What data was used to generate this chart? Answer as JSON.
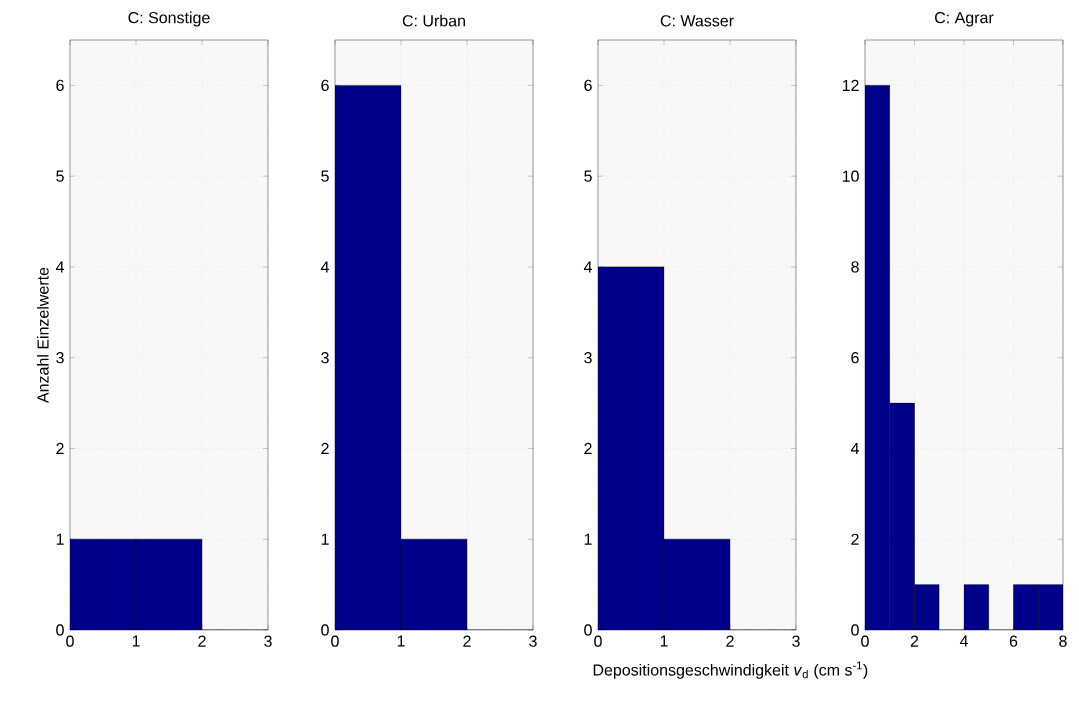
{
  "chart_data": [
    {
      "type": "histogram",
      "title": "C: Sonstige",
      "ylabel": "Anzahl Einzelwerte",
      "bins": [
        0,
        1,
        2,
        3
      ],
      "values": [
        1,
        1,
        0
      ],
      "color": "#00008b",
      "xlim": [
        0,
        3
      ],
      "ylim": [
        0,
        6.5
      ],
      "xticks": [
        0,
        1,
        2,
        3
      ],
      "yticks": [
        0,
        1,
        2,
        3,
        4,
        5,
        6
      ],
      "grid": true
    },
    {
      "type": "histogram",
      "title": "C: Urban",
      "bins": [
        0,
        1,
        2,
        3
      ],
      "values": [
        6,
        1,
        0
      ],
      "color": "#00008b",
      "xlim": [
        0,
        3
      ],
      "ylim": [
        0,
        6.5
      ],
      "xticks": [
        0,
        1,
        2,
        3
      ],
      "yticks": [
        0,
        1,
        2,
        3,
        4,
        5,
        6
      ],
      "grid": true
    },
    {
      "type": "histogram",
      "title": "C: Wasser",
      "bins": [
        0,
        1,
        2,
        3
      ],
      "values": [
        4,
        1,
        0
      ],
      "color": "#00008b",
      "xlim": [
        0,
        3
      ],
      "ylim": [
        0,
        6.5
      ],
      "xticks": [
        0,
        1,
        2,
        3
      ],
      "yticks": [
        0,
        1,
        2,
        3,
        4,
        5,
        6
      ],
      "grid": true
    },
    {
      "type": "histogram",
      "title": "C: Agrar",
      "xlabel": "Depositionsgeschwindigkeit *v*$_{d}$  (cm s$^{-1}$)",
      "bins": [
        0,
        1,
        2,
        3,
        4,
        5,
        6,
        7,
        8
      ],
      "values": [
        12,
        5,
        1,
        0,
        1,
        0,
        1,
        1
      ],
      "color": "#00008b",
      "xlim": [
        0,
        8
      ],
      "ylim": [
        0,
        13
      ],
      "xticks": [
        0,
        2,
        4,
        6,
        8
      ],
      "yticks": [
        0,
        2,
        4,
        6,
        8,
        10,
        12
      ],
      "grid": true
    }
  ]
}
